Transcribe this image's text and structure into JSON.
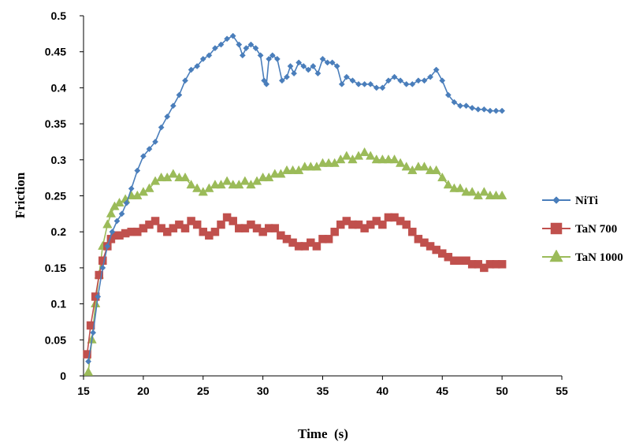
{
  "chart_data": {
    "type": "line",
    "xlabel": "Time  (s)",
    "ylabel": "Friction",
    "xlim": [
      15,
      55
    ],
    "ylim": [
      0,
      0.5
    ],
    "x_ticks": [
      "15",
      "20",
      "25",
      "30",
      "35",
      "40",
      "45",
      "50",
      "55"
    ],
    "y_ticks": [
      "0",
      "0.05",
      "0.1",
      "0.15",
      "0.2",
      "0.25",
      "0.3",
      "0.35",
      "0.4",
      "0.45",
      "0.5"
    ],
    "legend_position": "right",
    "grid": false,
    "series": [
      {
        "name": "NiTi",
        "color": "#4A7EBB",
        "marker": "diamond",
        "x": [
          15.4,
          15.8,
          16.2,
          16.6,
          17.0,
          17.4,
          17.8,
          18.2,
          18.6,
          19.0,
          19.5,
          20.0,
          20.5,
          21.0,
          21.5,
          22.0,
          22.5,
          23.0,
          23.5,
          24.0,
          24.5,
          25.0,
          25.5,
          26.0,
          26.5,
          27.0,
          27.5,
          28.0,
          28.3,
          28.6,
          29.0,
          29.4,
          29.8,
          30.1,
          30.3,
          30.5,
          30.8,
          31.2,
          31.6,
          32.0,
          32.3,
          32.6,
          33.0,
          33.4,
          33.8,
          34.2,
          34.6,
          35.0,
          35.4,
          35.8,
          36.2,
          36.6,
          37.0,
          37.5,
          38.0,
          38.5,
          39.0,
          39.5,
          40.0,
          40.5,
          41.0,
          41.5,
          42.0,
          42.5,
          43.0,
          43.5,
          44.0,
          44.5,
          45.0,
          45.5,
          46.0,
          46.5,
          47.0,
          47.5,
          48.0,
          48.5,
          49.0,
          49.5,
          50.0
        ],
        "values": [
          0.02,
          0.06,
          0.11,
          0.15,
          0.18,
          0.2,
          0.215,
          0.225,
          0.24,
          0.26,
          0.285,
          0.305,
          0.315,
          0.325,
          0.345,
          0.36,
          0.375,
          0.39,
          0.41,
          0.425,
          0.43,
          0.44,
          0.445,
          0.455,
          0.46,
          0.468,
          0.472,
          0.46,
          0.445,
          0.455,
          0.46,
          0.455,
          0.445,
          0.41,
          0.405,
          0.44,
          0.445,
          0.44,
          0.41,
          0.415,
          0.43,
          0.42,
          0.435,
          0.43,
          0.425,
          0.43,
          0.42,
          0.44,
          0.435,
          0.435,
          0.43,
          0.405,
          0.415,
          0.41,
          0.405,
          0.405,
          0.405,
          0.4,
          0.4,
          0.41,
          0.415,
          0.41,
          0.405,
          0.405,
          0.41,
          0.41,
          0.415,
          0.425,
          0.41,
          0.39,
          0.38,
          0.375,
          0.375,
          0.372,
          0.37,
          0.37,
          0.368,
          0.368,
          0.368
        ]
      },
      {
        "name": "TaN 700",
        "color": "#C0504D",
        "marker": "square",
        "x": [
          15.3,
          15.6,
          16.0,
          16.3,
          16.6,
          17.0,
          17.3,
          17.6,
          18.0,
          18.5,
          19.0,
          19.5,
          20.0,
          20.5,
          21.0,
          21.5,
          22.0,
          22.5,
          23.0,
          23.5,
          24.0,
          24.5,
          25.0,
          25.5,
          26.0,
          26.5,
          27.0,
          27.5,
          28.0,
          28.5,
          29.0,
          29.5,
          30.0,
          30.5,
          31.0,
          31.5,
          32.0,
          32.5,
          33.0,
          33.5,
          34.0,
          34.5,
          35.0,
          35.5,
          36.0,
          36.5,
          37.0,
          37.5,
          38.0,
          38.5,
          39.0,
          39.5,
          40.0,
          40.5,
          41.0,
          41.5,
          42.0,
          42.5,
          43.0,
          43.5,
          44.0,
          44.5,
          45.0,
          45.5,
          46.0,
          46.5,
          47.0,
          47.5,
          48.0,
          48.5,
          49.0,
          49.5,
          50.0
        ],
        "values": [
          0.03,
          0.07,
          0.11,
          0.14,
          0.16,
          0.18,
          0.19,
          0.195,
          0.195,
          0.198,
          0.2,
          0.2,
          0.205,
          0.21,
          0.215,
          0.205,
          0.2,
          0.205,
          0.21,
          0.205,
          0.215,
          0.21,
          0.2,
          0.195,
          0.2,
          0.21,
          0.22,
          0.215,
          0.205,
          0.205,
          0.21,
          0.205,
          0.2,
          0.205,
          0.205,
          0.195,
          0.19,
          0.185,
          0.18,
          0.18,
          0.185,
          0.18,
          0.19,
          0.19,
          0.2,
          0.21,
          0.215,
          0.21,
          0.21,
          0.205,
          0.21,
          0.215,
          0.21,
          0.22,
          0.22,
          0.215,
          0.21,
          0.2,
          0.19,
          0.185,
          0.18,
          0.175,
          0.17,
          0.165,
          0.16,
          0.16,
          0.16,
          0.155,
          0.155,
          0.15,
          0.155,
          0.155,
          0.155
        ]
      },
      {
        "name": "TaN 1000",
        "color": "#9BBB59",
        "marker": "triangle",
        "x": [
          15.4,
          15.7,
          16.0,
          16.3,
          16.6,
          17.0,
          17.3,
          17.6,
          18.0,
          18.5,
          19.0,
          19.5,
          20.0,
          20.5,
          21.0,
          21.5,
          22.0,
          22.5,
          23.0,
          23.5,
          24.0,
          24.5,
          25.0,
          25.5,
          26.0,
          26.5,
          27.0,
          27.5,
          28.0,
          28.5,
          29.0,
          29.5,
          30.0,
          30.5,
          31.0,
          31.5,
          32.0,
          32.5,
          33.0,
          33.5,
          34.0,
          34.5,
          35.0,
          35.5,
          36.0,
          36.5,
          37.0,
          37.5,
          38.0,
          38.5,
          39.0,
          39.5,
          40.0,
          40.5,
          41.0,
          41.5,
          42.0,
          42.5,
          43.0,
          43.5,
          44.0,
          44.5,
          45.0,
          45.5,
          46.0,
          46.5,
          47.0,
          47.5,
          48.0,
          48.5,
          49.0,
          49.5,
          50.0
        ],
        "values": [
          0.005,
          0.05,
          0.1,
          0.14,
          0.18,
          0.21,
          0.225,
          0.235,
          0.24,
          0.245,
          0.25,
          0.25,
          0.255,
          0.26,
          0.27,
          0.275,
          0.275,
          0.28,
          0.275,
          0.275,
          0.265,
          0.26,
          0.255,
          0.26,
          0.265,
          0.265,
          0.27,
          0.265,
          0.265,
          0.27,
          0.265,
          0.27,
          0.275,
          0.275,
          0.28,
          0.28,
          0.285,
          0.285,
          0.285,
          0.29,
          0.29,
          0.29,
          0.295,
          0.295,
          0.295,
          0.3,
          0.305,
          0.3,
          0.305,
          0.31,
          0.305,
          0.3,
          0.3,
          0.3,
          0.3,
          0.295,
          0.29,
          0.285,
          0.29,
          0.29,
          0.285,
          0.285,
          0.275,
          0.265,
          0.26,
          0.26,
          0.255,
          0.255,
          0.25,
          0.255,
          0.25,
          0.25,
          0.25
        ]
      }
    ]
  }
}
